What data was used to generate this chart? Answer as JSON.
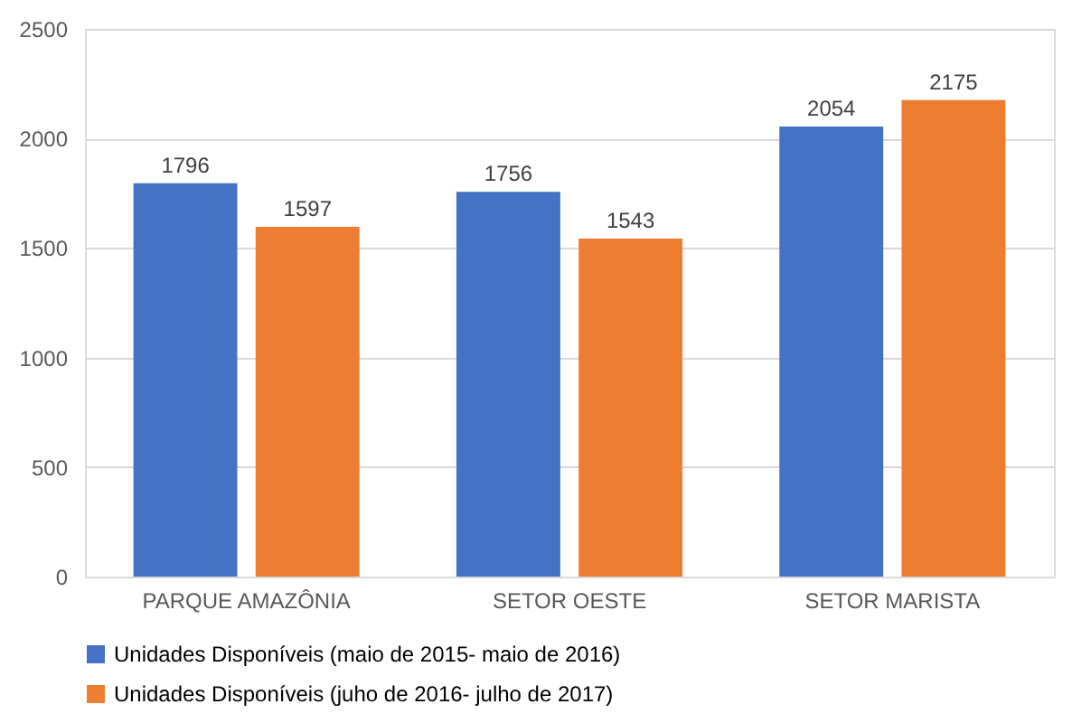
{
  "chart_data": {
    "type": "bar",
    "categories": [
      "PARQUE AMAZÔNIA",
      "SETOR OESTE",
      "SETOR MARISTA"
    ],
    "series": [
      {
        "name": "Unidades Disponíveis (maio de 2015- maio de 2016)",
        "color": "#4472c4",
        "values": [
          1796,
          1756,
          2054
        ]
      },
      {
        "name": "Unidades Disponíveis (juho de 2016- julho de 2017)",
        "color": "#ed7d31",
        "values": [
          1597,
          1543,
          2175
        ]
      }
    ],
    "ylim": [
      0,
      2500
    ],
    "yticks": [
      0,
      500,
      1000,
      1500,
      2000,
      2500
    ],
    "grid": "y",
    "legend": "bottom",
    "data_labels": true
  }
}
